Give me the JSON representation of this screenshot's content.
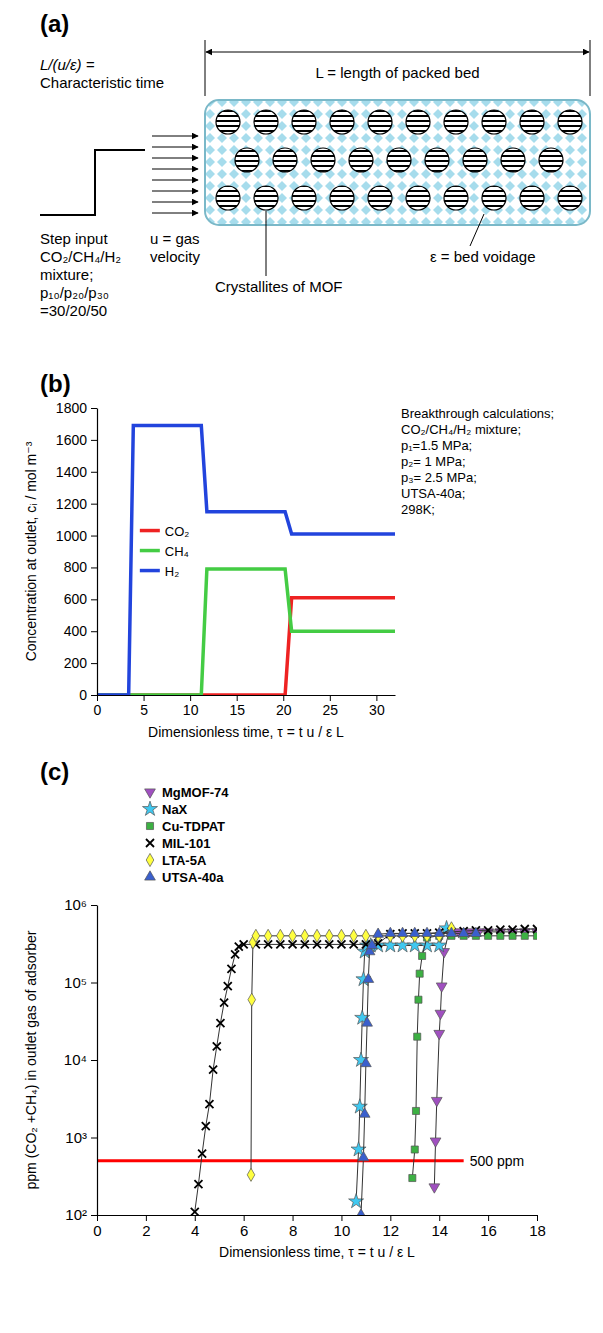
{
  "diagram": {
    "label": "(a)",
    "characteristic_time": [
      "L/(u/ε) =",
      "Characteristic time"
    ],
    "bed_length": "L = length of packed bed",
    "step_input": [
      "Step input",
      "CO₂/CH₄/H₂",
      "mixture;",
      "p₁₀/p₂₀/p₃₀",
      "=30/20/50"
    ],
    "gas_velocity": [
      "u = gas",
      "velocity"
    ],
    "crystallites": "Crystallites of MOF",
    "voidage": "ε = bed voidage"
  },
  "chart_data": [
    {
      "type": "line",
      "title": "(b)",
      "x_label": "Dimensionless time, τ = t u / ε L",
      "y_label": "Concentration at outlet, cᵢ / mol m⁻³",
      "annotation": [
        "Breakthrough calculations;",
        "CO₂/CH₄/H₂ mixture;",
        "p₁=1.5 MPa;",
        "p₂=  1 MPa;",
        "p₃= 2.5 MPa;",
        "UTSA-40a;",
        "298K;"
      ],
      "x": [
        0,
        3.4,
        3.9,
        11.2,
        11.8,
        20.2,
        20.9,
        32
      ],
      "series": [
        {
          "name": "CO₂",
          "color": "#ee2222",
          "values": [
            0,
            0,
            0,
            0,
            0,
            0,
            610,
            610
          ]
        },
        {
          "name": "CH₄",
          "color": "#44cc44",
          "values": [
            0,
            0,
            0,
            0,
            790,
            790,
            400,
            400
          ]
        },
        {
          "name": "H₂",
          "color": "#2244dd",
          "values": [
            0,
            0,
            1690,
            1690,
            1150,
            1150,
            1010,
            1010
          ]
        }
      ],
      "xlim": [
        0,
        32
      ],
      "xticks": [
        0,
        5,
        10,
        15,
        20,
        25,
        30
      ],
      "ylim": [
        0,
        1800
      ],
      "yticks": [
        0,
        200,
        400,
        600,
        800,
        1000,
        1200,
        1400,
        1600,
        1800
      ],
      "grid": false,
      "legend": "left"
    },
    {
      "type": "line",
      "title": "(c)",
      "x_label": "Dimensionless time, τ = t u / ε L",
      "y_label": "ppm (CO₂ +CH₄) in outlet gas of adsorber",
      "log": "y",
      "grid": false,
      "legend": "top-left",
      "line_style": "solid",
      "reference_line": {
        "y": 500,
        "x": [
          0,
          15
        ],
        "label": "500 ppm",
        "color": "#ff0000"
      },
      "series": [
        {
          "name": "MgMOF-74",
          "color": "#a050c0",
          "marker": "triangle-down",
          "x": [
            13.8,
            13.85,
            13.9,
            14.0,
            14.05,
            14.1,
            14.2,
            14.4,
            14.8,
            15.2,
            15.6,
            16,
            16.5,
            17,
            17.5,
            18
          ],
          "values": [
            230,
            900,
            3000,
            22000,
            40000,
            90000,
            250000,
            450000,
            450000,
            450000,
            450000,
            450000,
            450000,
            450000,
            450000,
            450000
          ]
        },
        {
          "name": "NaX",
          "color": "#40c8f0",
          "marker": "star",
          "x": [
            10.6,
            10.7,
            10.75,
            10.8,
            10.85,
            10.9,
            10.95,
            11.05,
            11.2,
            11.5,
            12,
            12.5,
            13,
            13.5,
            14,
            14.3
          ],
          "values": [
            150,
            700,
            2500,
            10000,
            35000,
            110000,
            250000,
            300000,
            300000,
            300000,
            300000,
            300000,
            300000,
            300000,
            300000,
            500000
          ]
        },
        {
          "name": "Cu-TDPAT",
          "color": "#3cb043",
          "marker": "square",
          "x": [
            12.9,
            13.0,
            13.05,
            13.1,
            13.15,
            13.2,
            13.3,
            13.5,
            14,
            14.5,
            15,
            15.5,
            16,
            16.5,
            17,
            17.5,
            18
          ],
          "values": [
            300,
            700,
            2200,
            20000,
            60000,
            130000,
            220000,
            380000,
            400000,
            400000,
            400000,
            400000,
            400000,
            400000,
            400000,
            400000,
            400000
          ]
        },
        {
          "name": "MIL-101",
          "color": "#000000",
          "marker": "x",
          "x": [
            4.0,
            4.15,
            4.3,
            4.45,
            4.6,
            4.75,
            4.9,
            5.05,
            5.2,
            5.35,
            5.5,
            5.65,
            5.8,
            6.0,
            6.5,
            7,
            7.5,
            8,
            8.5,
            9,
            9.5,
            10,
            10.5,
            11,
            11.5,
            12,
            12.5,
            13,
            13.5,
            14,
            14.5,
            15,
            15.5,
            16,
            16.5,
            17,
            17.5,
            18
          ],
          "values": [
            110,
            250,
            620,
            1400,
            2700,
            7500,
            15000,
            30000,
            55000,
            90000,
            150000,
            230000,
            290000,
            310000,
            310000,
            310000,
            310000,
            310000,
            310000,
            310000,
            310000,
            310000,
            310000,
            310000,
            320000,
            420000,
            430000,
            430000,
            430000,
            440000,
            450000,
            460000,
            470000,
            470000,
            480000,
            480000,
            490000,
            490000
          ]
        },
        {
          "name": "LTA-5A",
          "color": "#ffff40",
          "marker": "diamond",
          "x": [
            6.3,
            6.33,
            6.38,
            6.5,
            7,
            7.5,
            8,
            8.5,
            9,
            9.5,
            10,
            10.5,
            11,
            11.5,
            12,
            12.5,
            13,
            13.5,
            14,
            14.5
          ],
          "values": [
            330,
            60000,
            330000,
            400000,
            400000,
            400000,
            400000,
            400000,
            400000,
            400000,
            400000,
            400000,
            400000,
            400000,
            400000,
            400000,
            400000,
            400000,
            400000,
            500000
          ]
        },
        {
          "name": "UTSA-40a",
          "color": "#3a5fcd",
          "marker": "triangle-up",
          "x": [
            10.8,
            10.9,
            10.95,
            11.0,
            11.05,
            11.1,
            11.15,
            11.25,
            11.5,
            12,
            12.5,
            13,
            13.5,
            14,
            14.5,
            15,
            15.5
          ],
          "values": [
            100,
            550,
            2000,
            9000,
            30000,
            110000,
            250000,
            300000,
            420000,
            430000,
            430000,
            430000,
            430000,
            430000,
            430000,
            430000,
            430000
          ]
        }
      ],
      "xlim": [
        0,
        18
      ],
      "xticks": [
        0,
        2,
        4,
        6,
        8,
        10,
        12,
        14,
        16,
        18
      ],
      "ylim": [
        100,
        1000000
      ],
      "yticks": [
        {
          "value": 100,
          "label": "10²"
        },
        {
          "value": 1000,
          "label": "10³"
        },
        {
          "value": 10000,
          "label": "10⁴"
        },
        {
          "value": 100000,
          "label": "10⁵"
        },
        {
          "value": 1000000,
          "label": "10⁶"
        }
      ]
    }
  ]
}
